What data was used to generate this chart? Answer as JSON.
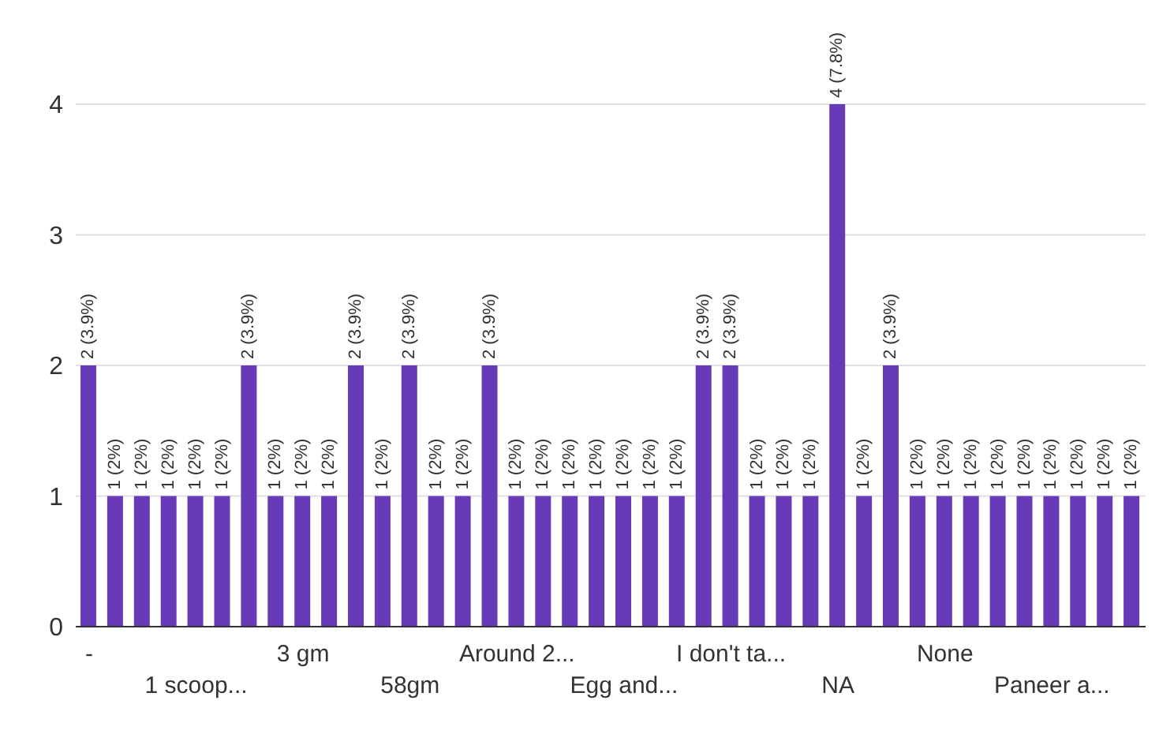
{
  "chart_data": {
    "type": "bar",
    "categories": [
      "-",
      null,
      null,
      null,
      "1 scoop...",
      null,
      null,
      null,
      "3 gm",
      null,
      null,
      null,
      "58gm",
      null,
      null,
      null,
      "Around 2...",
      null,
      null,
      null,
      "Egg and...",
      null,
      null,
      null,
      "I don't ta...",
      null,
      null,
      null,
      "NA",
      null,
      null,
      null,
      "None",
      null,
      null,
      null,
      "Paneer a...",
      null,
      null,
      null
    ],
    "values": [
      2,
      1,
      1,
      1,
      1,
      1,
      2,
      1,
      1,
      1,
      2,
      1,
      2,
      1,
      1,
      2,
      1,
      1,
      1,
      1,
      1,
      1,
      1,
      2,
      2,
      1,
      1,
      1,
      4,
      1,
      2,
      1,
      1,
      1,
      1,
      1,
      1,
      1,
      1,
      1
    ],
    "value_labels": [
      "2 (3.9%)",
      "1 (2%)",
      "1 (2%)",
      "1 (2%)",
      "1 (2%)",
      "1 (2%)",
      "2 (3.9%)",
      "1 (2%)",
      "1 (2%)",
      "1 (2%)",
      "2 (3.9%)",
      "1 (2%)",
      "2 (3.9%)",
      "1 (2%)",
      "1 (2%)",
      "2 (3.9%)",
      "1 (2%)",
      "1 (2%)",
      "1 (2%)",
      "1 (2%)",
      "1 (2%)",
      "1 (2%)",
      "1 (2%)",
      "2 (3.9%)",
      "2 (3.9%)",
      "1 (2%)",
      "1 (2%)",
      "1 (2%)",
      "4 (7.8%)",
      "1 (2%)",
      "2 (3.9%)",
      "1 (2%)",
      "1 (2%)",
      "1 (2%)",
      "1 (2%)",
      "1 (2%)",
      "1 (2%)",
      "1 (2%)",
      "1 (2%)",
      "1 (2%)"
    ],
    "color": "#673ab7",
    "ylim": [
      0,
      4
    ],
    "yticks": [
      0,
      1,
      2,
      3,
      4
    ],
    "grid": "y"
  }
}
